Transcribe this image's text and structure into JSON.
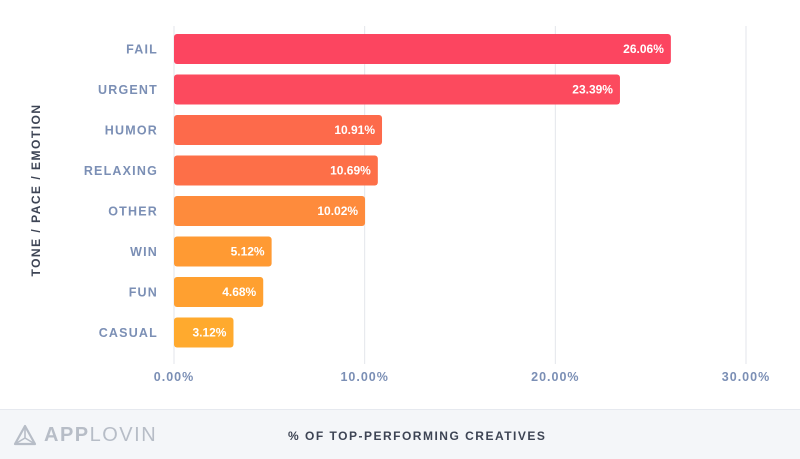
{
  "chart_data": {
    "type": "bar",
    "orientation": "horizontal",
    "categories": [
      "FAIL",
      "URGENT",
      "HUMOR",
      "RELAXING",
      "OTHER",
      "WIN",
      "FUN",
      "CASUAL"
    ],
    "values": [
      26.06,
      23.39,
      10.91,
      10.69,
      10.02,
      5.12,
      4.68,
      3.12
    ],
    "value_labels": [
      "26.06%",
      "23.39%",
      "10.91%",
      "10.69%",
      "10.02%",
      "5.12%",
      "4.68%",
      "3.12%"
    ],
    "bar_colors": [
      "#fc4560",
      "#fc4a5e",
      "#fd6a4b",
      "#fd6f48",
      "#fe8b3c",
      "#ff9a33",
      "#ffa030",
      "#ffaa2e"
    ],
    "xticks": [
      0,
      10,
      20,
      30
    ],
    "xtick_labels": [
      "0.00%",
      "10.00%",
      "20.00%",
      "30.00%"
    ],
    "xlim": [
      0,
      30
    ],
    "xlabel": "% OF TOP-PERFORMING CREATIVES",
    "ylabel": "TONE / PACE / EMOTION",
    "grid": true
  },
  "footer": {
    "brand_app": "APP",
    "brand_lovin": "LOVIN",
    "logo_icon": "applovin-triangle-icon"
  }
}
